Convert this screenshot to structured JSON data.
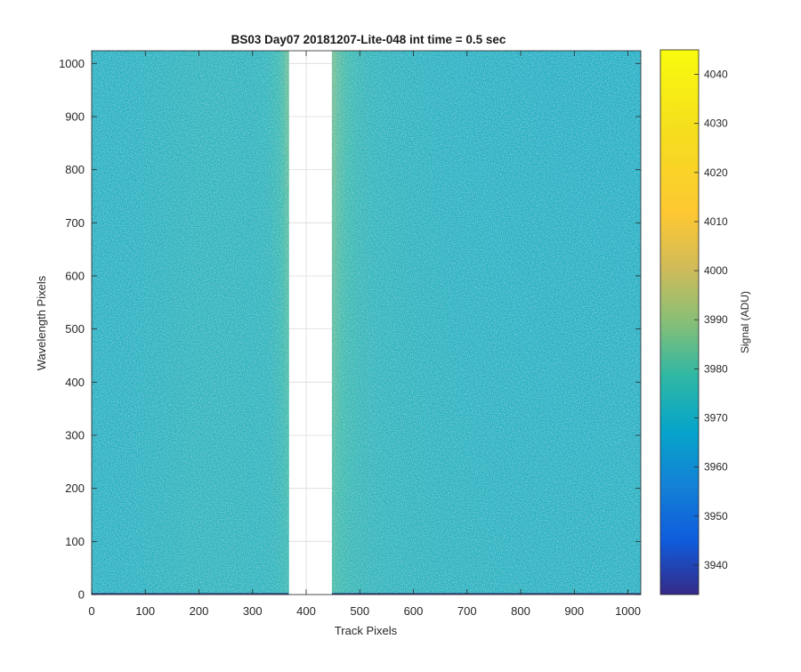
{
  "chart_data": {
    "type": "heatmap",
    "title": "BS03 Day07 20181207-Lite-048 int time = 0.5 sec",
    "xlabel": "Track Pixels",
    "ylabel": "Wavelength Pixels",
    "colorbar_label": "Signal (ADU)",
    "xlim": [
      0,
      1024
    ],
    "ylim": [
      0,
      1024
    ],
    "x_ticks": [
      0,
      100,
      200,
      300,
      400,
      500,
      600,
      700,
      800,
      900,
      1000
    ],
    "y_ticks": [
      0,
      100,
      200,
      300,
      400,
      500,
      600,
      700,
      800,
      900,
      1000
    ],
    "clim": [
      3934,
      4045
    ],
    "colorbar_ticks": [
      3940,
      3950,
      3960,
      3970,
      3980,
      3990,
      4000,
      4010,
      4020,
      4030,
      4040
    ],
    "colormap": "parula",
    "masked_track_range": [
      367,
      448
    ],
    "baseline_signal": 3972,
    "grid": true
  }
}
